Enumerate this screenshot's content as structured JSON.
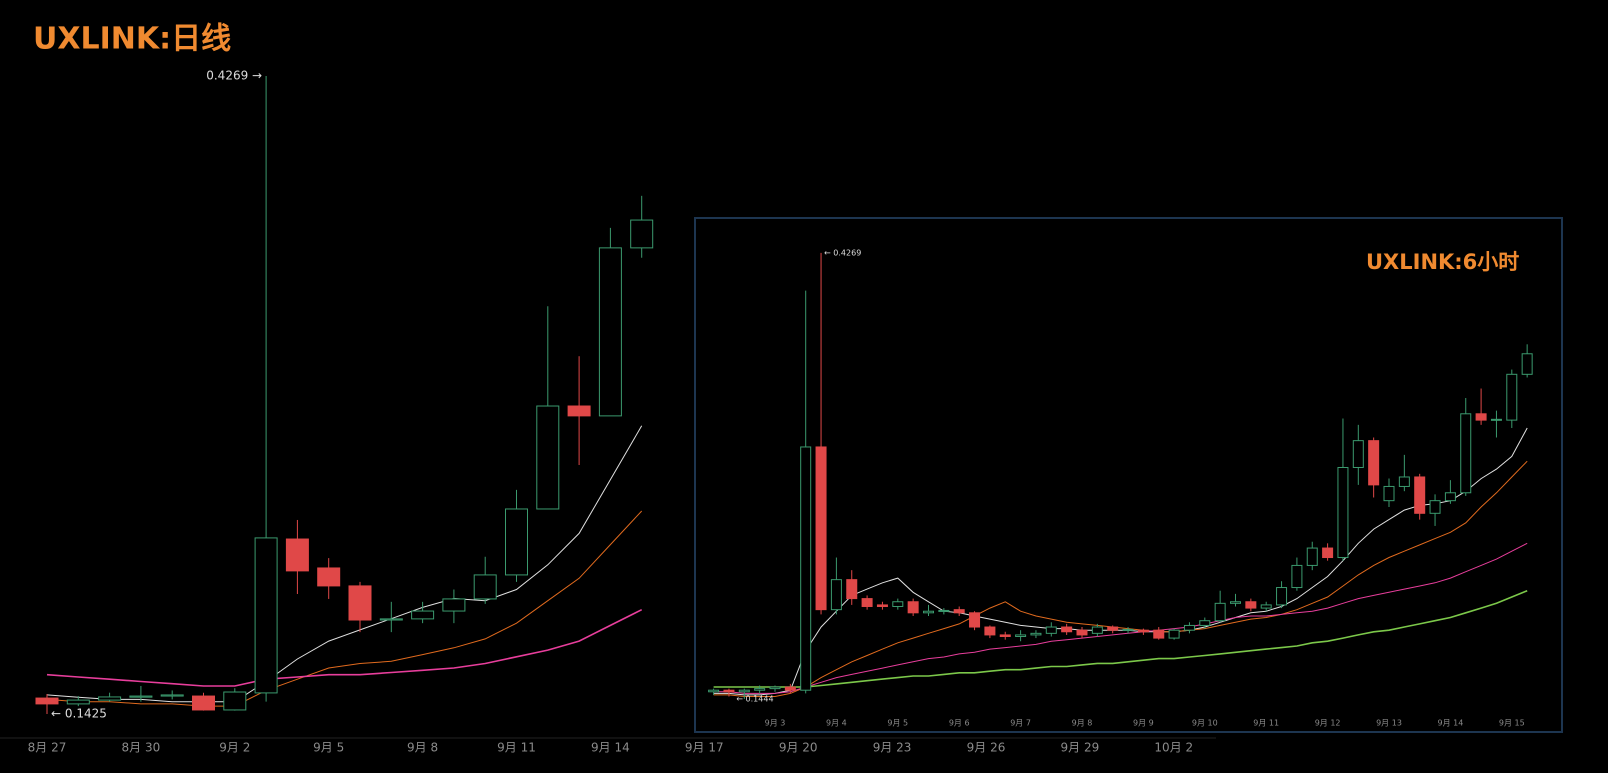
{
  "chart_data": [
    {
      "type": "candlestick",
      "title": "UXLINK:日线",
      "categories": [
        "8月 27",
        null,
        null,
        "8月 30",
        null,
        null,
        "9月 2",
        null,
        null,
        "9月 5",
        null,
        null,
        "9月 8",
        null,
        null,
        "9月 11",
        null,
        null,
        "9月 14",
        null,
        null,
        "9月 17",
        null,
        null,
        "9月 20",
        null,
        null,
        "9月 23",
        null,
        null,
        "9月 26",
        null,
        null,
        "9月 29",
        null,
        null,
        "10月 2"
      ],
      "open": [
        0.1496,
        0.147,
        0.1487,
        0.15,
        0.1505,
        0.1505,
        0.1443,
        0.1519,
        0.2205,
        0.2076,
        0.1996,
        0.1844,
        0.1849,
        0.1884,
        0.1938,
        0.2045,
        0.2339,
        0.2798,
        0.2754,
        0.3503,
        null,
        null,
        null,
        null,
        null,
        null,
        null,
        null,
        null,
        null,
        null,
        null,
        null,
        null,
        null,
        null,
        null
      ],
      "high": [
        0.1514,
        0.1505,
        0.152,
        0.155,
        0.153,
        0.152,
        0.154,
        0.4269,
        0.229,
        0.212,
        0.2014,
        0.1925,
        0.1925,
        0.198,
        0.2126,
        0.2424,
        0.3243,
        0.302,
        0.3592,
        0.3735,
        null,
        null,
        null,
        null,
        null,
        null,
        null,
        null,
        null,
        null,
        null,
        null,
        null,
        null,
        null,
        null,
        null
      ],
      "low": [
        0.1425,
        0.146,
        0.148,
        0.148,
        0.149,
        0.144,
        0.144,
        0.148,
        0.196,
        0.1938,
        0.179,
        0.179,
        0.183,
        0.183,
        0.1916,
        0.2014,
        0.2339,
        0.2535,
        0.2754,
        0.3459,
        null,
        null,
        null,
        null,
        null,
        null,
        null,
        null,
        null,
        null,
        null,
        null,
        null,
        null,
        null,
        null,
        null
      ],
      "close": [
        0.147,
        0.1487,
        0.1501,
        0.1505,
        0.151,
        0.1443,
        0.1523,
        0.221,
        0.2063,
        0.1996,
        0.1844,
        0.1849,
        0.1884,
        0.1938,
        0.2045,
        0.2339,
        0.2798,
        0.2754,
        0.3503,
        0.3627,
        null,
        null,
        null,
        null,
        null,
        null,
        null,
        null,
        null,
        null,
        null,
        null,
        null,
        null,
        null,
        null,
        null
      ],
      "up_color": "#3b9a6e",
      "down_color": "#e04848",
      "series": [
        {
          "color": "#e0e0e0",
          "values": [
            0.151,
            0.15,
            0.149,
            0.149,
            0.148,
            0.148,
            0.148,
            0.157,
            0.167,
            0.175,
            0.18,
            0.185,
            0.19,
            0.194,
            0.193,
            0.198,
            0.209,
            0.223,
            0.247,
            0.271,
            null,
            null,
            null,
            null,
            null,
            null,
            null,
            null,
            null,
            null,
            null,
            null,
            null,
            null,
            null,
            null,
            null
          ]
        },
        {
          "color": "#e06a1e",
          "values": [
            0.149,
            0.148,
            0.148,
            0.147,
            0.147,
            0.146,
            0.146,
            0.153,
            0.158,
            0.163,
            0.165,
            0.166,
            0.169,
            0.172,
            0.176,
            0.183,
            0.193,
            0.203,
            0.218,
            0.233,
            null,
            null,
            null,
            null,
            null,
            null,
            null,
            null,
            null,
            null,
            null,
            null,
            null,
            null,
            null,
            null,
            null
          ]
        },
        {
          "color": "#e83e9c",
          "values": [
            0.16,
            0.159,
            0.158,
            0.157,
            0.156,
            0.155,
            0.155,
            0.158,
            0.159,
            0.16,
            0.16,
            0.161,
            0.162,
            0.163,
            0.165,
            0.168,
            0.171,
            0.175,
            0.182,
            0.189,
            null,
            null,
            null,
            null,
            null,
            null,
            null,
            null,
            null,
            null,
            null,
            null,
            null,
            null,
            null,
            null,
            null
          ]
        }
      ],
      "ylim": [
        0.1318,
        0.4608
      ],
      "annotations": {
        "high": "0.4269 →",
        "low": "← 0.1425"
      }
    },
    {
      "type": "candlestick",
      "title": "UXLINK:6小时",
      "categories": [
        null,
        null,
        null,
        null,
        "9月 3",
        null,
        null,
        null,
        "9月 4",
        null,
        null,
        null,
        "9月 5",
        null,
        null,
        null,
        "9月 6",
        null,
        null,
        null,
        "9月 7",
        null,
        null,
        null,
        "9月 8",
        null,
        null,
        null,
        "9月 9",
        null,
        null,
        null,
        "9月 10",
        null,
        null,
        null,
        "9月 11",
        null,
        null,
        null,
        "9月 12",
        null,
        null,
        null,
        "9月 13",
        null,
        null,
        null,
        "9月 14",
        null,
        null,
        null,
        "9月 15",
        null
      ],
      "open": [
        0.149,
        0.15,
        0.149,
        0.15,
        0.151,
        0.152,
        0.15,
        0.304,
        0.201,
        0.22,
        0.208,
        0.204,
        0.203,
        0.206,
        0.199,
        0.2,
        0.201,
        0.199,
        0.19,
        0.185,
        0.184,
        0.185,
        0.186,
        0.19,
        0.188,
        0.186,
        0.19,
        0.188,
        0.188,
        0.188,
        0.183,
        0.188,
        0.191,
        0.194,
        0.205,
        0.206,
        0.202,
        0.204,
        0.215,
        0.229,
        0.24,
        0.234,
        0.291,
        0.308,
        0.27,
        0.279,
        0.285,
        0.262,
        0.27,
        0.275,
        0.325,
        0.321,
        0.321,
        0.35
      ],
      "high": [
        0.151,
        0.151,
        0.151,
        0.153,
        0.153,
        0.154,
        0.403,
        0.4269,
        0.234,
        0.226,
        0.21,
        0.206,
        0.208,
        0.208,
        0.204,
        0.202,
        0.203,
        0.2,
        0.191,
        0.187,
        0.188,
        0.188,
        0.193,
        0.192,
        0.19,
        0.192,
        0.191,
        0.19,
        0.189,
        0.19,
        0.189,
        0.193,
        0.196,
        0.213,
        0.211,
        0.208,
        0.206,
        0.219,
        0.234,
        0.244,
        0.243,
        0.322,
        0.318,
        0.31,
        0.284,
        0.299,
        0.287,
        0.274,
        0.283,
        0.335,
        0.341,
        0.327,
        0.353,
        0.369
      ],
      "low": [
        0.147,
        0.146,
        0.1444,
        0.148,
        0.149,
        0.148,
        0.148,
        0.198,
        0.198,
        0.204,
        0.201,
        0.201,
        0.201,
        0.197,
        0.197,
        0.198,
        0.197,
        0.188,
        0.183,
        0.182,
        0.181,
        0.183,
        0.184,
        0.185,
        0.183,
        0.184,
        0.186,
        0.186,
        0.185,
        0.182,
        0.182,
        0.186,
        0.189,
        0.193,
        0.203,
        0.2,
        0.2,
        0.202,
        0.213,
        0.226,
        0.232,
        0.232,
        0.28,
        0.272,
        0.266,
        0.276,
        0.258,
        0.254,
        0.268,
        0.273,
        0.318,
        0.31,
        0.316,
        0.348
      ],
      "close": [
        0.15,
        0.149,
        0.15,
        0.151,
        0.152,
        0.15,
        0.304,
        0.201,
        0.22,
        0.208,
        0.203,
        0.203,
        0.206,
        0.199,
        0.2,
        0.2005,
        0.199,
        0.19,
        0.185,
        0.184,
        0.185,
        0.186,
        0.19,
        0.187,
        0.185,
        0.19,
        0.188,
        0.1885,
        0.187,
        0.183,
        0.188,
        0.191,
        0.194,
        0.205,
        0.206,
        0.202,
        0.204,
        0.215,
        0.229,
        0.24,
        0.234,
        0.291,
        0.308,
        0.28,
        0.279,
        0.285,
        0.262,
        0.27,
        0.275,
        0.325,
        0.321,
        0.3215,
        0.35,
        0.363
      ],
      "up_color": "#3b9a6e",
      "down_color": "#e04848",
      "series": [
        {
          "color": "#e0e0e0",
          "values": [
            0.148,
            0.148,
            0.147,
            0.147,
            0.148,
            0.15,
            0.175,
            0.19,
            0.2,
            0.21,
            0.214,
            0.218,
            0.221,
            0.212,
            0.206,
            0.2,
            0.199,
            0.197,
            0.195,
            0.193,
            0.191,
            0.19,
            0.189,
            0.189,
            0.188,
            0.188,
            0.188,
            0.188,
            0.187,
            0.187,
            0.187,
            0.188,
            0.19,
            0.193,
            0.196,
            0.199,
            0.2,
            0.203,
            0.208,
            0.215,
            0.222,
            0.232,
            0.243,
            0.252,
            0.258,
            0.264,
            0.267,
            0.268,
            0.27,
            0.276,
            0.284,
            0.29,
            0.298,
            0.316
          ]
        },
        {
          "color": "#e06a1e",
          "values": [
            0.147,
            0.147,
            0.146,
            0.146,
            0.146,
            0.148,
            0.152,
            0.158,
            0.163,
            0.168,
            0.172,
            0.176,
            0.18,
            0.183,
            0.186,
            0.189,
            0.192,
            0.197,
            0.202,
            0.206,
            0.2,
            0.197,
            0.195,
            0.193,
            0.192,
            0.191,
            0.19,
            0.189,
            0.188,
            0.187,
            0.187,
            0.188,
            0.189,
            0.191,
            0.193,
            0.195,
            0.196,
            0.198,
            0.201,
            0.205,
            0.209,
            0.216,
            0.223,
            0.229,
            0.234,
            0.238,
            0.242,
            0.246,
            0.25,
            0.256,
            0.266,
            0.275,
            0.285,
            0.295
          ]
        },
        {
          "color": "#e83e9c",
          "values": [
            0.149,
            0.149,
            0.148,
            0.148,
            0.148,
            0.149,
            0.152,
            0.155,
            0.158,
            0.16,
            0.162,
            0.164,
            0.166,
            0.168,
            0.17,
            0.171,
            0.173,
            0.174,
            0.176,
            0.177,
            0.178,
            0.179,
            0.181,
            0.182,
            0.183,
            0.184,
            0.185,
            0.186,
            0.187,
            0.188,
            0.189,
            0.19,
            0.192,
            0.194,
            0.196,
            0.197,
            0.197,
            0.198,
            0.199,
            0.2,
            0.202,
            0.205,
            0.208,
            0.21,
            0.212,
            0.214,
            0.216,
            0.218,
            0.221,
            0.225,
            0.229,
            0.233,
            0.238,
            0.243
          ]
        },
        {
          "color": "#7cc84a",
          "values": [
            0.152,
            0.152,
            0.152,
            0.152,
            0.152,
            0.152,
            0.152,
            0.153,
            0.154,
            0.155,
            0.156,
            0.157,
            0.158,
            0.159,
            0.159,
            0.16,
            0.161,
            0.161,
            0.162,
            0.163,
            0.163,
            0.164,
            0.165,
            0.165,
            0.166,
            0.167,
            0.167,
            0.168,
            0.169,
            0.17,
            0.17,
            0.171,
            0.172,
            0.173,
            0.174,
            0.175,
            0.176,
            0.177,
            0.178,
            0.18,
            0.181,
            0.183,
            0.185,
            0.187,
            0.188,
            0.19,
            0.192,
            0.194,
            0.196,
            0.199,
            0.202,
            0.205,
            0.209,
            0.213
          ]
        }
      ],
      "ylim": [
        0.1343,
        0.4477
      ],
      "annotations": {
        "high": "← 0.4269",
        "low": "← 0.1444"
      }
    }
  ]
}
